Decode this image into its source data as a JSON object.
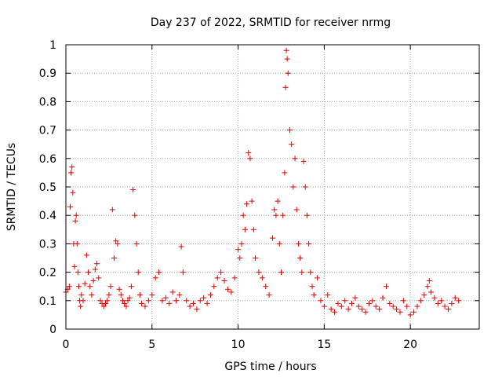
{
  "chart_data": {
    "type": "scatter",
    "title": "Day 237 of 2022, SRMTID for receiver nrmg",
    "xlabel": "GPS time / hours",
    "ylabel": "SRMTID / TECUs",
    "xlim": [
      0,
      24
    ],
    "ylim": [
      0,
      1
    ],
    "xticks": [
      0,
      5,
      10,
      15,
      20
    ],
    "xtick_labels": [
      "0",
      "5",
      "10",
      "15",
      "20"
    ],
    "yticks": [
      0,
      0.1,
      0.2,
      0.3,
      0.4,
      0.5,
      0.6,
      0.7,
      0.8,
      0.9,
      1
    ],
    "ytick_labels": [
      "0",
      "0.1",
      "0.2",
      "0.3",
      "0.4",
      "0.5",
      "0.6",
      "0.7",
      "0.8",
      "0.9",
      "1"
    ],
    "grid": true,
    "marker": "+",
    "color": "#e00000",
    "series": [
      {
        "name": "SRMTID",
        "x": [
          0.0,
          0.1,
          0.2,
          0.25,
          0.3,
          0.35,
          0.4,
          0.45,
          0.5,
          0.55,
          0.6,
          0.65,
          0.7,
          0.75,
          0.8,
          0.85,
          0.9,
          1.0,
          1.1,
          1.2,
          1.3,
          1.4,
          1.5,
          1.6,
          1.7,
          1.8,
          1.9,
          2.0,
          2.1,
          2.2,
          2.3,
          2.4,
          2.5,
          2.6,
          2.7,
          2.8,
          2.9,
          3.0,
          3.1,
          3.2,
          3.3,
          3.4,
          3.5,
          3.6,
          3.7,
          3.8,
          3.9,
          4.0,
          4.1,
          4.2,
          4.3,
          4.4,
          4.6,
          4.8,
          5.0,
          5.2,
          5.4,
          5.6,
          5.8,
          6.0,
          6.2,
          6.4,
          6.6,
          6.7,
          6.8,
          7.0,
          7.2,
          7.4,
          7.6,
          7.8,
          8.0,
          8.2,
          8.4,
          8.6,
          8.8,
          9.0,
          9.2,
          9.4,
          9.6,
          9.8,
          10.0,
          10.1,
          10.2,
          10.3,
          10.4,
          10.5,
          10.6,
          10.7,
          10.8,
          10.9,
          11.0,
          11.2,
          11.4,
          11.6,
          11.8,
          12.0,
          12.1,
          12.2,
          12.3,
          12.4,
          12.5,
          12.6,
          12.7,
          12.75,
          12.8,
          12.85,
          12.9,
          13.0,
          13.1,
          13.2,
          13.3,
          13.4,
          13.5,
          13.6,
          13.7,
          13.8,
          13.9,
          14.0,
          14.1,
          14.2,
          14.3,
          14.4,
          14.6,
          14.8,
          15.0,
          15.2,
          15.4,
          15.6,
          15.8,
          16.0,
          16.2,
          16.4,
          16.6,
          16.8,
          17.0,
          17.2,
          17.4,
          17.6,
          17.8,
          18.0,
          18.2,
          18.4,
          18.6,
          18.8,
          19.0,
          19.2,
          19.4,
          19.6,
          19.8,
          20.0,
          20.2,
          20.4,
          20.6,
          20.8,
          21.0,
          21.1,
          21.2,
          21.4,
          21.6,
          21.8,
          22.0,
          22.2,
          22.4,
          22.6,
          22.8
        ],
        "y": [
          0.13,
          0.14,
          0.15,
          0.43,
          0.55,
          0.57,
          0.48,
          0.3,
          0.22,
          0.38,
          0.4,
          0.3,
          0.2,
          0.15,
          0.1,
          0.08,
          0.12,
          0.1,
          0.16,
          0.26,
          0.2,
          0.15,
          0.12,
          0.17,
          0.21,
          0.23,
          0.18,
          0.1,
          0.09,
          0.08,
          0.09,
          0.1,
          0.12,
          0.15,
          0.42,
          0.25,
          0.31,
          0.3,
          0.14,
          0.12,
          0.1,
          0.09,
          0.08,
          0.1,
          0.11,
          0.15,
          0.49,
          0.4,
          0.3,
          0.2,
          0.12,
          0.09,
          0.08,
          0.1,
          0.12,
          0.18,
          0.2,
          0.1,
          0.11,
          0.09,
          0.13,
          0.1,
          0.12,
          0.29,
          0.2,
          0.1,
          0.08,
          0.09,
          0.07,
          0.1,
          0.11,
          0.09,
          0.12,
          0.15,
          0.18,
          0.2,
          0.17,
          0.14,
          0.13,
          0.18,
          0.28,
          0.25,
          0.3,
          0.4,
          0.35,
          0.44,
          0.62,
          0.6,
          0.45,
          0.35,
          0.25,
          0.2,
          0.18,
          0.15,
          0.12,
          0.32,
          0.42,
          0.4,
          0.45,
          0.3,
          0.2,
          0.4,
          0.55,
          0.85,
          0.98,
          0.95,
          0.9,
          0.7,
          0.65,
          0.5,
          0.6,
          0.42,
          0.3,
          0.25,
          0.2,
          0.59,
          0.5,
          0.4,
          0.3,
          0.2,
          0.15,
          0.12,
          0.18,
          0.1,
          0.08,
          0.12,
          0.07,
          0.06,
          0.09,
          0.08,
          0.1,
          0.07,
          0.09,
          0.11,
          0.08,
          0.07,
          0.06,
          0.09,
          0.1,
          0.08,
          0.07,
          0.11,
          0.15,
          0.09,
          0.08,
          0.07,
          0.06,
          0.1,
          0.08,
          0.05,
          0.06,
          0.08,
          0.1,
          0.12,
          0.15,
          0.17,
          0.13,
          0.11,
          0.09,
          0.1,
          0.08,
          0.07,
          0.09,
          0.11,
          0.1
        ]
      }
    ]
  }
}
